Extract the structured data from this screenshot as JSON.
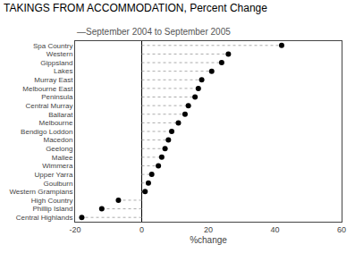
{
  "chart_data": {
    "type": "dot",
    "title": "TAKINGS FROM ACCOMMODATION, Percent Change",
    "subtitle": "—September 2004 to September 2005",
    "xlabel": "%change",
    "orientation": "horizontal",
    "categories": [
      "Central Highlands",
      "Phillip Island",
      "High Country",
      "Western Grampians",
      "Goulburn",
      "Upper Yarra",
      "Wimmera",
      "Mallee",
      "Geelong",
      "Macedon",
      "Bendigo Loddon",
      "Melbourne",
      "Ballarat",
      "Central Murray",
      "Peninsula",
      "Melbourne East",
      "Murray East",
      "Lakes",
      "Gippsland",
      "Western",
      "Spa Country"
    ],
    "values": [
      -18,
      -12,
      -7,
      1,
      2,
      3,
      5,
      6,
      7,
      8,
      9,
      11,
      13,
      14,
      16,
      17,
      18,
      21,
      24,
      26,
      42
    ],
    "color": "#000000",
    "xlim": [
      -20,
      60
    ],
    "xticks": [
      -20,
      0,
      20,
      40,
      60
    ],
    "grid": false
  }
}
